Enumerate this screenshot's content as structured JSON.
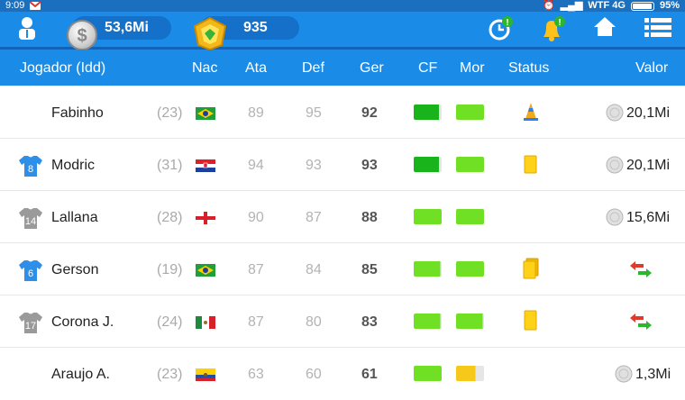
{
  "status_bar": {
    "time": "9:09",
    "carrier": "WTF 4G",
    "battery": "95%"
  },
  "top_bar": {
    "money": "53,6Mi",
    "points": "935",
    "colors": {
      "bar": "#1b8be8",
      "pill": "#1570c9"
    }
  },
  "table": {
    "headers": {
      "player": "Jogador (Idd)",
      "nation": "Nac",
      "attack": "Ata",
      "defense": "Def",
      "overall": "Ger",
      "fitness": "CF",
      "morale": "Mor",
      "status": "Status",
      "value": "Valor"
    },
    "rows": [
      {
        "shirt": "",
        "shirt_color": "none",
        "name": "Fabinho",
        "age": "(23)",
        "flag": "brazil",
        "ata": "89",
        "def": "95",
        "ger": "92",
        "cf_level": 0.9,
        "cf_color": "#19b41c",
        "mor_level": 1.0,
        "mor_color": "#6fe024",
        "status_icon": "training-cone-icon",
        "value_type": "price",
        "value": "20,1Mi"
      },
      {
        "shirt": "8",
        "shirt_color": "#2e8fe8",
        "name": "Modric",
        "age": "(31)",
        "flag": "croatia",
        "ata": "94",
        "def": "93",
        "ger": "93",
        "cf_level": 0.9,
        "cf_color": "#19b41c",
        "mor_level": 1.0,
        "mor_color": "#6fe024",
        "status_icon": "yellow-card-icon",
        "value_type": "price",
        "value": "20,1Mi"
      },
      {
        "shirt": "14",
        "shirt_color": "#9a9a9a",
        "name": "Lallana",
        "age": "(28)",
        "flag": "england",
        "ata": "90",
        "def": "87",
        "ger": "88",
        "cf_level": 1.0,
        "cf_color": "#6fe024",
        "mor_level": 1.0,
        "mor_color": "#6fe024",
        "status_icon": "",
        "value_type": "price",
        "value": "15,6Mi"
      },
      {
        "shirt": "6",
        "shirt_color": "#2e8fe8",
        "name": "Gerson",
        "age": "(19)",
        "flag": "brazil",
        "ata": "87",
        "def": "84",
        "ger": "85",
        "cf_level": 0.95,
        "cf_color": "#6fe024",
        "mor_level": 1.0,
        "mor_color": "#6fe024",
        "status_icon": "yellow-cards-icon",
        "value_type": "transfer",
        "value": ""
      },
      {
        "shirt": "17",
        "shirt_color": "#9a9a9a",
        "name": "Corona J.",
        "age": "(24)",
        "flag": "mexico",
        "ata": "87",
        "def": "80",
        "ger": "83",
        "cf_level": 0.95,
        "cf_color": "#6fe024",
        "mor_level": 0.95,
        "mor_color": "#6fe024",
        "status_icon": "yellow-card-icon",
        "value_type": "transfer",
        "value": ""
      },
      {
        "shirt": "",
        "shirt_color": "none",
        "name": "Araujo A.",
        "age": "(23)",
        "flag": "ecuador",
        "ata": "63",
        "def": "60",
        "ger": "61",
        "cf_level": 1.0,
        "cf_color": "#6fe024",
        "mor_level": 0.7,
        "mor_color": "#f6c81a",
        "status_icon": "",
        "value_type": "price",
        "value": "1,3Mi"
      }
    ]
  }
}
